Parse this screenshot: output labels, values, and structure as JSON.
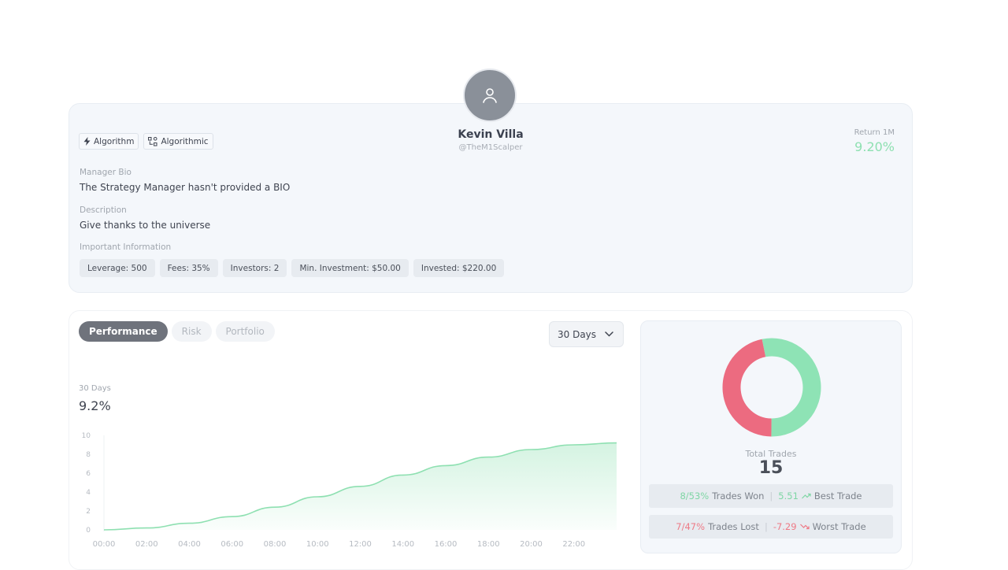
{
  "profile": {
    "name": "Kevin Villa",
    "handle": "@TheM1Scalper",
    "tags": [
      {
        "icon": "bolt-icon",
        "label": "Algorithm"
      },
      {
        "icon": "algorithmic-icon",
        "label": "Algorithmic"
      }
    ],
    "return_label": "Return 1M",
    "return_value": "9.20%",
    "bio_label": "Manager Bio",
    "bio_text": "The Strategy Manager hasn't provided a BIO",
    "description_label": "Description",
    "description_text": "Give thanks to the universe",
    "info_label": "Important Information",
    "info_chips": [
      "Leverage: 500",
      "Fees: 35%",
      "Investors: 2",
      "Min. Investment: $50.00",
      "Invested: $220.00"
    ]
  },
  "tabs": [
    {
      "label": "Performance",
      "active": true
    },
    {
      "label": "Risk",
      "active": false
    },
    {
      "label": "Portfolio",
      "active": false
    }
  ],
  "period_select": {
    "value": "30 Days"
  },
  "summary": {
    "label": "30 Days",
    "value": "9.2%"
  },
  "chart_data": {
    "type": "area",
    "x": [
      "00:00",
      "02:00",
      "04:00",
      "06:00",
      "08:00",
      "10:00",
      "12:00",
      "14:00",
      "16:00",
      "18:00",
      "20:00",
      "22:00",
      "23:59"
    ],
    "y": [
      0,
      0.2,
      0.7,
      1.4,
      2.4,
      3.5,
      4.6,
      5.8,
      6.8,
      7.7,
      8.5,
      9.0,
      9.2
    ],
    "x_ticks": [
      "00:00",
      "02:00",
      "04:00",
      "06:00",
      "08:00",
      "10:00",
      "12:00",
      "14:00",
      "16:00",
      "18:00",
      "20:00",
      "22:00"
    ],
    "y_ticks": [
      0,
      2,
      4,
      6,
      8,
      10
    ],
    "ylim": [
      0,
      10
    ],
    "color": "#8ee0b1",
    "grid": false
  },
  "trades": {
    "total_label": "Total Trades",
    "total_value": "15",
    "won": "8/53%",
    "won_label": "Trades Won",
    "best": "5.51",
    "best_label": "Best Trade",
    "lost": "7/47%",
    "lost_label": "Trades Lost",
    "worst": "-7.29",
    "worst_label": "Worst Trade",
    "won_count": 8,
    "lost_count": 7,
    "won_color": "#8ee3b5",
    "lost_color": "#ec6b80"
  }
}
